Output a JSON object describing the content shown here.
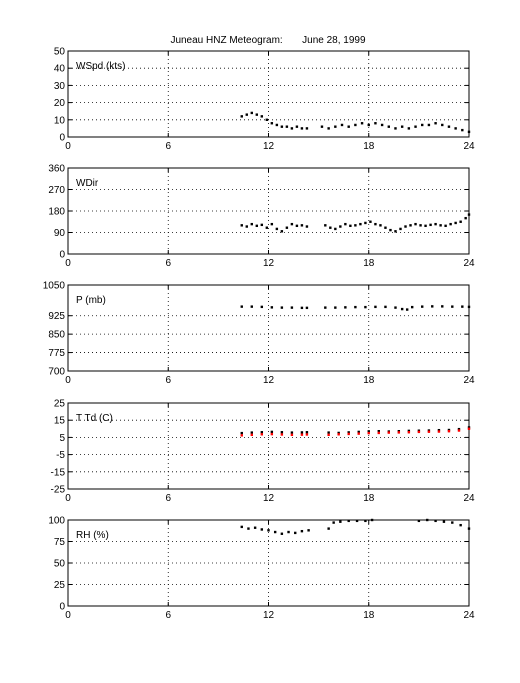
{
  "title": "Juneau HNZ Meteogram:       June 28, 1999",
  "chart_data": [
    {
      "type": "scatter",
      "panel_label": "WSpd (kts)",
      "xlim": [
        0,
        24
      ],
      "x_ticks": [
        0,
        6,
        12,
        18,
        24
      ],
      "ylim": [
        0,
        50
      ],
      "y_ticks": [
        0,
        10,
        20,
        30,
        40,
        50
      ],
      "grid": true,
      "series": [
        {
          "color": "#000000",
          "points": [
            [
              10.4,
              12
            ],
            [
              10.7,
              13
            ],
            [
              11.0,
              14
            ],
            [
              11.3,
              13
            ],
            [
              11.6,
              12
            ],
            [
              11.9,
              10
            ],
            [
              12.2,
              8
            ],
            [
              12.5,
              7
            ],
            [
              12.8,
              6
            ],
            [
              13.1,
              6
            ],
            [
              13.4,
              5
            ],
            [
              13.7,
              6
            ],
            [
              14.0,
              5
            ],
            [
              14.3,
              5
            ],
            [
              15.2,
              6
            ],
            [
              15.6,
              5
            ],
            [
              16.0,
              6
            ],
            [
              16.4,
              7
            ],
            [
              16.8,
              6
            ],
            [
              17.2,
              7
            ],
            [
              17.6,
              8
            ],
            [
              18.0,
              7
            ],
            [
              18.4,
              8
            ],
            [
              18.8,
              7
            ],
            [
              19.2,
              6
            ],
            [
              19.6,
              5
            ],
            [
              20.0,
              6
            ],
            [
              20.4,
              5
            ],
            [
              20.8,
              6
            ],
            [
              21.2,
              7
            ],
            [
              21.6,
              7
            ],
            [
              22.0,
              8
            ],
            [
              22.4,
              7
            ],
            [
              22.8,
              6
            ],
            [
              23.2,
              5
            ],
            [
              23.6,
              4
            ],
            [
              24.0,
              3
            ]
          ]
        }
      ]
    },
    {
      "type": "scatter",
      "panel_label": "WDir",
      "xlim": [
        0,
        24
      ],
      "x_ticks": [
        0,
        6,
        12,
        18,
        24
      ],
      "ylim": [
        0,
        360
      ],
      "y_ticks": [
        0,
        90,
        180,
        270,
        360
      ],
      "grid": true,
      "series": [
        {
          "color": "#000000",
          "points": [
            [
              10.4,
              120
            ],
            [
              10.7,
              115
            ],
            [
              11.0,
              125
            ],
            [
              11.3,
              118
            ],
            [
              11.6,
              122
            ],
            [
              11.9,
              110
            ],
            [
              12.2,
              125
            ],
            [
              12.5,
              105
            ],
            [
              12.8,
              95
            ],
            [
              13.1,
              110
            ],
            [
              13.4,
              125
            ],
            [
              13.7,
              118
            ],
            [
              14.0,
              120
            ],
            [
              14.3,
              115
            ],
            [
              15.4,
              120
            ],
            [
              15.7,
              110
            ],
            [
              16.0,
              105
            ],
            [
              16.3,
              115
            ],
            [
              16.6,
              125
            ],
            [
              16.9,
              118
            ],
            [
              17.2,
              120
            ],
            [
              17.5,
              125
            ],
            [
              17.8,
              130
            ],
            [
              18.1,
              135
            ],
            [
              18.4,
              125
            ],
            [
              18.7,
              120
            ],
            [
              19.0,
              110
            ],
            [
              19.3,
              100
            ],
            [
              19.6,
              95
            ],
            [
              19.9,
              105
            ],
            [
              20.2,
              115
            ],
            [
              20.5,
              120
            ],
            [
              20.8,
              125
            ],
            [
              21.1,
              120
            ],
            [
              21.4,
              118
            ],
            [
              21.7,
              122
            ],
            [
              22.0,
              125
            ],
            [
              22.3,
              120
            ],
            [
              22.6,
              118
            ],
            [
              22.9,
              125
            ],
            [
              23.2,
              130
            ],
            [
              23.5,
              135
            ],
            [
              23.8,
              150
            ],
            [
              24.0,
              165
            ]
          ]
        }
      ]
    },
    {
      "type": "scatter",
      "panel_label": "P (mb)",
      "xlim": [
        0,
        24
      ],
      "x_ticks": [
        0,
        6,
        12,
        18,
        24
      ],
      "ylim": [
        700,
        1050
      ],
      "y_ticks": [
        700,
        775,
        850,
        925,
        1050
      ],
      "grid": true,
      "series": [
        {
          "color": "#000000",
          "points": [
            [
              10.4,
              962
            ],
            [
              11.0,
              962
            ],
            [
              11.6,
              961
            ],
            [
              12.2,
              959
            ],
            [
              12.8,
              958
            ],
            [
              13.4,
              958
            ],
            [
              14.0,
              957
            ],
            [
              14.3,
              957
            ],
            [
              15.4,
              958
            ],
            [
              16.0,
              958
            ],
            [
              16.6,
              959
            ],
            [
              17.2,
              960
            ],
            [
              17.8,
              960
            ],
            [
              18.4,
              961
            ],
            [
              19.0,
              961
            ],
            [
              19.6,
              958
            ],
            [
              20.0,
              952
            ],
            [
              20.3,
              950
            ],
            [
              20.6,
              960
            ],
            [
              21.2,
              962
            ],
            [
              21.8,
              963
            ],
            [
              22.4,
              963
            ],
            [
              23.0,
              962
            ],
            [
              23.6,
              962
            ],
            [
              24.0,
              961
            ]
          ]
        }
      ]
    },
    {
      "type": "scatter",
      "panel_label": "T Td (C)",
      "xlim": [
        0,
        24
      ],
      "x_ticks": [
        0,
        6,
        12,
        18,
        24
      ],
      "ylim": [
        -25,
        25
      ],
      "y_ticks": [
        -25,
        -15,
        -5,
        5,
        15,
        25
      ],
      "grid": true,
      "series": [
        {
          "color": "#000000",
          "points": [
            [
              10.4,
              7.5
            ],
            [
              11.0,
              7.8
            ],
            [
              11.6,
              8.0
            ],
            [
              12.2,
              8.2
            ],
            [
              12.8,
              8.0
            ],
            [
              13.4,
              7.8
            ],
            [
              14.0,
              7.9
            ],
            [
              14.3,
              8.0
            ],
            [
              15.6,
              7.8
            ],
            [
              16.2,
              7.6
            ],
            [
              16.8,
              7.9
            ],
            [
              17.4,
              8.2
            ],
            [
              18.0,
              8.5
            ],
            [
              18.6,
              8.6
            ],
            [
              19.2,
              8.4
            ],
            [
              19.8,
              8.6
            ],
            [
              20.4,
              8.8
            ],
            [
              21.0,
              8.9
            ],
            [
              21.6,
              9.0
            ],
            [
              22.2,
              9.2
            ],
            [
              22.8,
              9.3
            ],
            [
              23.4,
              9.8
            ],
            [
              24.0,
              10.8
            ]
          ]
        },
        {
          "color": "#ff0000",
          "points": [
            [
              10.4,
              6.2
            ],
            [
              11.0,
              6.5
            ],
            [
              11.6,
              6.8
            ],
            [
              12.2,
              6.9
            ],
            [
              12.8,
              6.7
            ],
            [
              13.4,
              6.5
            ],
            [
              14.0,
              6.6
            ],
            [
              14.3,
              6.7
            ],
            [
              15.6,
              6.5
            ],
            [
              16.2,
              6.8
            ],
            [
              16.8,
              7.0
            ],
            [
              17.4,
              7.2
            ],
            [
              18.0,
              7.5
            ],
            [
              18.6,
              7.6
            ],
            [
              19.2,
              7.8
            ],
            [
              19.8,
              7.9
            ],
            [
              20.4,
              8.0
            ],
            [
              21.0,
              8.2
            ],
            [
              21.6,
              8.3
            ],
            [
              22.2,
              8.4
            ],
            [
              22.8,
              8.6
            ],
            [
              23.4,
              9.0
            ],
            [
              24.0,
              10.0
            ]
          ]
        }
      ]
    },
    {
      "type": "scatter",
      "panel_label": "RH (%)",
      "xlim": [
        0,
        24
      ],
      "x_ticks": [
        0,
        6,
        12,
        18,
        24
      ],
      "ylim": [
        0,
        100
      ],
      "y_ticks": [
        0,
        25,
        50,
        75,
        100
      ],
      "grid": true,
      "series": [
        {
          "color": "#000000",
          "points": [
            [
              10.4,
              92
            ],
            [
              10.8,
              90
            ],
            [
              11.2,
              91
            ],
            [
              11.6,
              89
            ],
            [
              12.0,
              88
            ],
            [
              12.4,
              86
            ],
            [
              12.8,
              84
            ],
            [
              13.2,
              86
            ],
            [
              13.6,
              85
            ],
            [
              14.0,
              87
            ],
            [
              14.4,
              88
            ],
            [
              15.6,
              90
            ],
            [
              15.9,
              97
            ],
            [
              16.3,
              98
            ],
            [
              16.8,
              99
            ],
            [
              17.3,
              99
            ],
            [
              17.8,
              99
            ],
            [
              18.2,
              100
            ],
            [
              21.0,
              99
            ],
            [
              21.5,
              100
            ],
            [
              22.0,
              99
            ],
            [
              22.5,
              98
            ],
            [
              23.0,
              97
            ],
            [
              23.5,
              94
            ],
            [
              24.0,
              90
            ]
          ]
        }
      ]
    }
  ]
}
